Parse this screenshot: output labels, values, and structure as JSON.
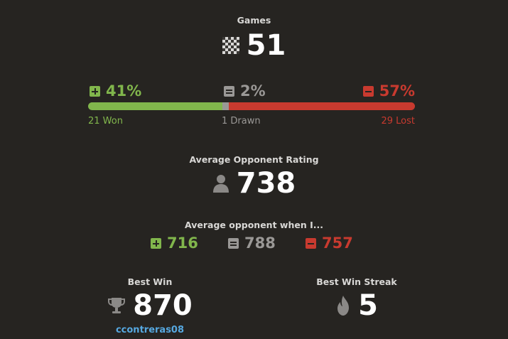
{
  "games": {
    "label": "Games",
    "value": "51"
  },
  "results": {
    "won": {
      "pct": "41%",
      "detail": "21 Won",
      "fraction": 0.41,
      "color": "#81b64c"
    },
    "drawn": {
      "pct": "2%",
      "detail": "1 Drawn",
      "fraction": 0.02,
      "color": "#9a9896"
    },
    "lost": {
      "pct": "57%",
      "detail": "29 Lost",
      "fraction": 0.57,
      "color": "#c83a2f"
    }
  },
  "avg_opponent": {
    "label": "Average Opponent Rating",
    "value": "738"
  },
  "avg_when": {
    "label": "Average opponent when I...",
    "won": "716",
    "drawn": "788",
    "lost": "757"
  },
  "best_win": {
    "label": "Best Win",
    "value": "870",
    "opponent": "ccontreras08"
  },
  "best_streak": {
    "label": "Best Win Streak",
    "value": "5"
  },
  "icons": {
    "games": "checkerboard-icon",
    "won": "plus-box-icon",
    "drawn": "equal-box-icon",
    "lost": "minus-box-icon",
    "opponent": "person-icon",
    "best_win": "trophy-icon",
    "streak": "flame-icon"
  }
}
